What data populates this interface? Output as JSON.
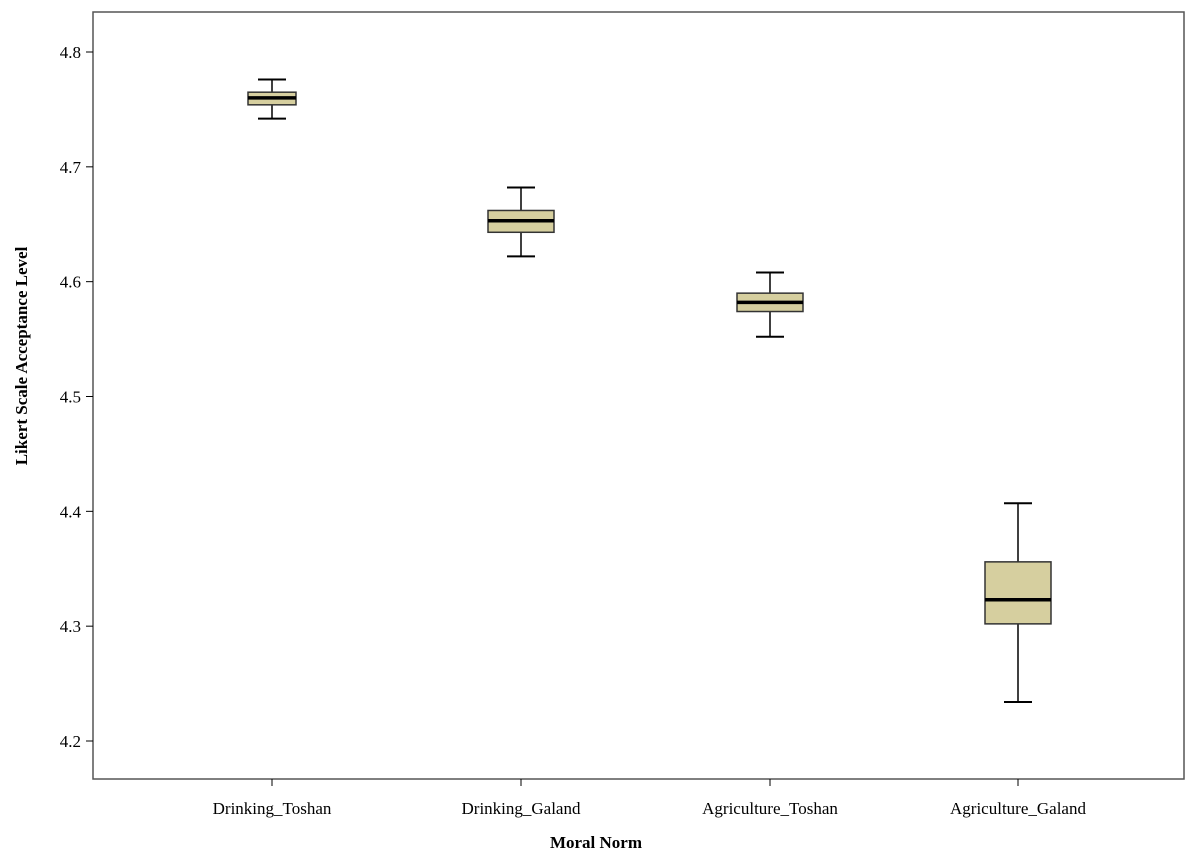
{
  "chart_data": {
    "type": "boxplot",
    "title": "",
    "xlabel": "Moral Norm",
    "ylabel": "Likert Scale Acceptance Level",
    "ylim": [
      4.17,
      4.84
    ],
    "yticks": [
      "4.2",
      "4.3",
      "4.4",
      "4.5",
      "4.6",
      "4.7",
      "4.8"
    ],
    "grid": false,
    "box_color": "#d6cf9f",
    "categories": [
      "Drinking_Toshan",
      "Drinking_Galand",
      "Agriculture_Toshan",
      "Agriculture_Galand"
    ],
    "boxes": [
      {
        "category": "Drinking_Toshan",
        "min": 4.742,
        "q1": 4.754,
        "median": 4.76,
        "q3": 4.765,
        "max": 4.776
      },
      {
        "category": "Drinking_Galand",
        "min": 4.622,
        "q1": 4.643,
        "median": 4.653,
        "q3": 4.662,
        "max": 4.682
      },
      {
        "category": "Agriculture_Toshan",
        "min": 4.552,
        "q1": 4.574,
        "median": 4.582,
        "q3": 4.59,
        "max": 4.608
      },
      {
        "category": "Agriculture_Galand",
        "min": 4.234,
        "q1": 4.302,
        "median": 4.323,
        "q3": 4.356,
        "max": 4.407
      }
    ]
  }
}
